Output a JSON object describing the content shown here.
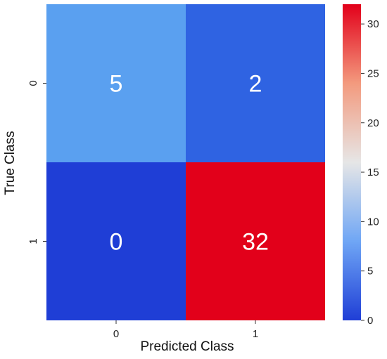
{
  "chart_data": {
    "type": "heatmap",
    "x_categories": [
      "0",
      "1"
    ],
    "y_categories": [
      "0",
      "1"
    ],
    "matrix": [
      [
        5,
        2
      ],
      [
        0,
        32
      ]
    ],
    "xlabel": "Predicted Class",
    "ylabel": "True Class",
    "colorbar": {
      "min": 0,
      "max": 32,
      "ticks": [
        0,
        5,
        10,
        15,
        20,
        25,
        30
      ],
      "colormap": "coolwarm",
      "stops": [
        "#3b4cc0",
        "#8db0fe",
        "#dddddd",
        "#f49a7b",
        "#b40426"
      ]
    },
    "cell_colors": [
      [
        "#5aa0f0",
        "#2f63e2"
      ],
      [
        "#1f3ed6",
        "#e2001a"
      ]
    ],
    "grid": false,
    "legend": "colorbar-right"
  }
}
